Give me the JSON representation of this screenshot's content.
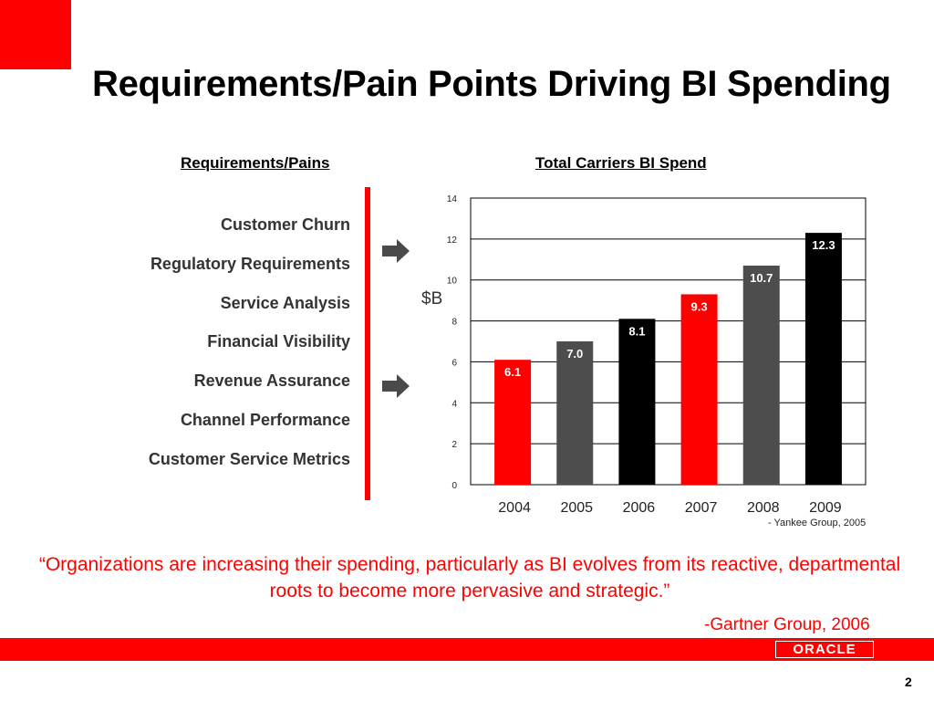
{
  "slide": {
    "title": "Requirements/Pain Points Driving BI Spending",
    "left_heading": "Requirements/Pains",
    "right_heading": "Total Carriers BI Spend",
    "requirements": [
      "Customer Churn",
      "Regulatory Requirements",
      "Service Analysis",
      "Financial Visibility",
      "Revenue Assurance",
      "Channel Performance",
      "Customer Service Metrics"
    ],
    "chart_source": "- Yankee Group, 2005",
    "quote": "“Organizations are increasing their spending, particularly as BI evolves from its reactive, departmental roots to become more pervasive and strategic.”",
    "quote_source": "-Gartner Group, 2006",
    "logo_text": "ORACLE",
    "page_number": "2"
  },
  "colors": {
    "accent_red": "#ff0000",
    "bar_red": "#ff0000",
    "bar_gray": "#4d4d4d",
    "bar_black": "#000000",
    "arrow_gray": "#4a4a4a"
  },
  "chart_data": {
    "type": "bar",
    "categories": [
      "2004",
      "2005",
      "2006",
      "2007",
      "2008",
      "2009"
    ],
    "values": [
      6.1,
      7.0,
      8.1,
      9.3,
      10.7,
      12.3
    ],
    "data_labels": [
      "6.1",
      "7.0",
      "8.1",
      "9.3",
      "10.7",
      "12.3"
    ],
    "bar_colors": [
      "#ff0000",
      "#4d4d4d",
      "#000000",
      "#ff0000",
      "#4d4d4d",
      "#000000"
    ],
    "ylabel": "$B",
    "ylim": [
      0,
      14
    ],
    "yticks": [
      0,
      2,
      4,
      6,
      8,
      10,
      12,
      14
    ],
    "grid": true
  }
}
